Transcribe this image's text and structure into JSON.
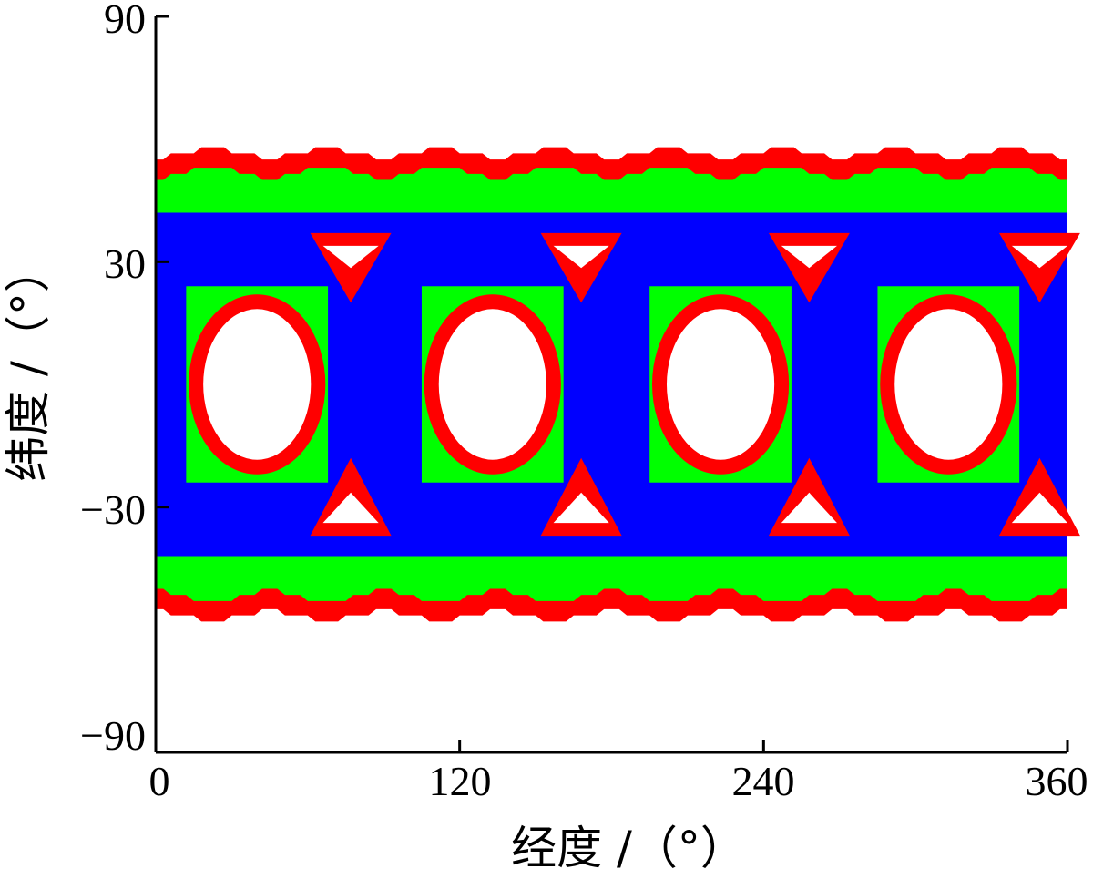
{
  "chart_data": {
    "type": "heatmap",
    "xlabel": "经度 /（°）",
    "ylabel": "纬度 /（°）",
    "xlim": [
      0,
      360
    ],
    "ylim": [
      -90,
      90
    ],
    "xticks": [
      "0",
      "120",
      "240",
      "360"
    ],
    "yticks": [
      "90",
      "30",
      "−30",
      "−90"
    ],
    "grid": false,
    "colors": {
      "base": "#0000ff",
      "band_edge": "#00ff00",
      "boundary": "#ff0000",
      "gap": "#ffffff"
    },
    "regions": {
      "covered_band": {
        "lon": [
          0,
          360
        ],
        "lat": [
          -50,
          50
        ],
        "color": "#0000ff"
      },
      "north_edge_green": {
        "lon": [
          0,
          360
        ],
        "lat_approx": [
          42,
          50
        ],
        "color": "#00ff00"
      },
      "north_edge_red": {
        "lon": [
          0,
          360
        ],
        "lat_approx": [
          50,
          55
        ],
        "color": "#ff0000"
      },
      "south_edge_green": {
        "lon": [
          0,
          360
        ],
        "lat_approx": [
          -50,
          -42
        ],
        "color": "#00ff00"
      },
      "south_edge_red": {
        "lon": [
          0,
          360
        ],
        "lat_approx": [
          -55,
          -50
        ],
        "color": "#ff0000"
      },
      "large_gaps_center_lon": [
        40,
        133,
        223,
        313
      ],
      "large_gaps_lat": [
        -20,
        20
      ],
      "small_gaps_north_center_lon": [
        77,
        168,
        258,
        349
      ],
      "small_gaps_north_lat": [
        20,
        37
      ],
      "small_gaps_south_center_lon": [
        77,
        168,
        258,
        349
      ],
      "small_gaps_south_lat": [
        -37,
        -18
      ]
    }
  }
}
